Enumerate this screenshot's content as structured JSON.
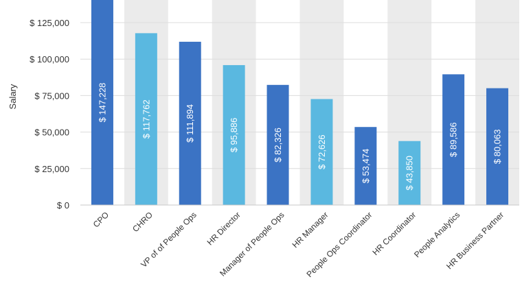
{
  "chart_data": {
    "type": "bar",
    "ylabel": "Salary",
    "ylim": [
      0,
      140000
    ],
    "yticks": [
      0,
      25000,
      50000,
      75000,
      100000,
      125000
    ],
    "ytick_labels": [
      "$ 0",
      "$ 25,000",
      "$ 50,000",
      "$ 75,000",
      "$ 100,000",
      "$ 125,000"
    ],
    "categories": [
      "CPO",
      "CHRO",
      "VP of of People Ops",
      "HR Director",
      "Manager of People Ops",
      "HR Manager",
      "People Ops Coordinator",
      "HR Coordinator",
      "People Analytics",
      "HR Business Partner"
    ],
    "values": [
      147228,
      117762,
      111894,
      95886,
      82326,
      72626,
      53474,
      43850,
      89586,
      80063
    ],
    "value_labels": [
      "$ 147,228",
      "$ 117,762",
      "$ 111,894",
      "$ 95,886",
      "$ 82,326",
      "$ 72,626",
      "$ 53,474",
      "$ 43,850",
      "$ 89,586",
      "$ 80,063"
    ],
    "bar_colors": [
      "#3b73c4",
      "#5ab8e0",
      "#3b73c4",
      "#5ab8e0",
      "#3b73c4",
      "#5ab8e0",
      "#3b73c4",
      "#5ab8e0",
      "#3b73c4",
      "#3b73c4"
    ],
    "band_color": "#ebebeb",
    "gridlines": true
  }
}
